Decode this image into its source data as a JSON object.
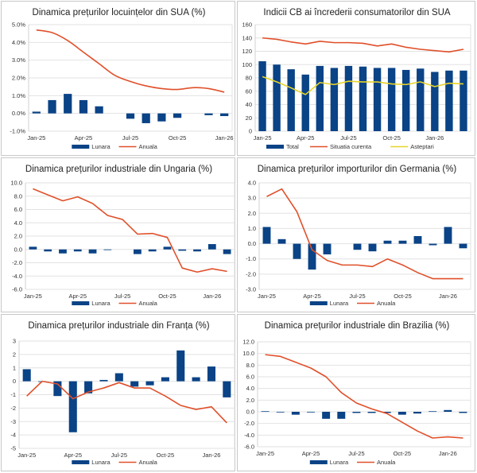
{
  "chart_data": [
    {
      "type": "bar+line",
      "title": "Dinamica prețurilor locuințelor din SUA (%)",
      "categories": [
        "Jan-25",
        "Feb-25",
        "Mar-25",
        "Apr-25",
        "May-25",
        "Jun-25",
        "Jul-25",
        "Aug-25",
        "Sep-25",
        "Oct-25",
        "Nov-25",
        "Dec-25",
        "Jan-26"
      ],
      "tick_labels": [
        "Jan-25",
        "Apr-25",
        "Jul-25",
        "Oct-25",
        "Jan-26"
      ],
      "tick_every": 3,
      "ylim": [
        -1.0,
        5.0
      ],
      "ystep": 1.0,
      "yformat": "pct1",
      "series": [
        {
          "name": "Lunara",
          "type": "bar",
          "color": "#0a4386",
          "values": [
            0.1,
            0.75,
            1.1,
            0.75,
            0.4,
            null,
            -0.3,
            -0.55,
            -0.45,
            -0.25,
            null,
            -0.1,
            -0.15
          ]
        },
        {
          "name": "Anuala",
          "type": "line",
          "color": "#e0502a",
          "values": [
            4.7,
            4.55,
            4.1,
            3.45,
            2.8,
            2.15,
            1.8,
            1.55,
            1.4,
            1.35,
            1.45,
            1.4,
            1.2
          ]
        }
      ],
      "legend": "bottom"
    },
    {
      "type": "bar+line",
      "title": "Indicii CB ai încrederii consumatorilor din SUA",
      "categories": [
        "Jan-25",
        "Feb-25",
        "Mar-25",
        "Apr-25",
        "May-25",
        "Jun-25",
        "Jul-25",
        "Aug-25",
        "Sep-25",
        "Oct-25",
        "Nov-25",
        "Dec-25",
        "Jan-26",
        "Feb-26",
        "Mar-26"
      ],
      "tick_labels": [
        "Jan-25",
        "Apr-25",
        "Jul-25",
        "Oct-25",
        "Jan-26"
      ],
      "tick_every": 3,
      "ylim": [
        0,
        160
      ],
      "ystep": 20,
      "yformat": "int",
      "series": [
        {
          "name": "Total",
          "type": "bar",
          "color": "#0a4386",
          "values": [
            105,
            100,
            93,
            85,
            98,
            95,
            98,
            97,
            95,
            95,
            92,
            94,
            89,
            91,
            91
          ]
        },
        {
          "name": "Situatia curenta",
          "type": "line",
          "color": "#e0502a",
          "values": [
            140,
            138,
            134,
            131,
            135,
            133,
            133,
            132,
            128,
            131,
            126,
            123,
            121,
            119,
            123
          ]
        },
        {
          "name": "Asteptari",
          "type": "line",
          "color": "#e8d42a",
          "values": [
            82,
            74,
            65,
            55,
            73,
            70,
            75,
            74,
            74,
            71,
            70,
            74,
            67,
            72,
            71
          ]
        }
      ],
      "legend": "bottom"
    },
    {
      "type": "bar+line",
      "title": "Dinamica prețurilor industriale din Ungaria (%)",
      "categories": [
        "Jan-25",
        "Feb-25",
        "Mar-25",
        "Apr-25",
        "May-25",
        "Jun-25",
        "Jul-25",
        "Aug-25",
        "Sep-25",
        "Oct-25",
        "Nov-25",
        "Dec-25",
        "Jan-26",
        "Feb-26"
      ],
      "tick_labels": [
        "Jan-25",
        "Apr-25",
        "Jul-25",
        "Oct-25",
        "Jan-26"
      ],
      "tick_every": 3,
      "ylim": [
        -6.0,
        10.0
      ],
      "ystep": 2.0,
      "yformat": "dec1",
      "series": [
        {
          "name": "Lunara",
          "type": "bar",
          "color": "#0a4386",
          "values": [
            0.4,
            -0.3,
            -0.6,
            -0.3,
            -0.6,
            -0.1,
            null,
            -0.7,
            -0.3,
            0.4,
            -0.2,
            -0.3,
            0.8,
            -0.7
          ]
        },
        {
          "name": "Anuala",
          "type": "line",
          "color": "#e0502a",
          "values": [
            9.1,
            8.2,
            7.3,
            7.9,
            6.9,
            5.1,
            4.5,
            2.3,
            2.4,
            1.8,
            -2.8,
            -3.4,
            -2.9,
            -3.3
          ]
        }
      ],
      "legend": "bottom"
    },
    {
      "type": "bar+line",
      "title": "Dinamica prețurilor importurilor din Germania (%)",
      "categories": [
        "Jan-25",
        "Feb-25",
        "Mar-25",
        "Apr-25",
        "May-25",
        "Jun-25",
        "Jul-25",
        "Aug-25",
        "Sep-25",
        "Oct-25",
        "Nov-25",
        "Dec-25",
        "Jan-26",
        "Feb-26"
      ],
      "tick_labels": [
        "Jan-25",
        "Apr-25",
        "Jul-25",
        "Oct-25",
        "Jan-26"
      ],
      "tick_every": 3,
      "ylim": [
        -3.0,
        4.0
      ],
      "ystep": 1.0,
      "yformat": "dec1",
      "series": [
        {
          "name": "Lunara",
          "type": "bar",
          "color": "#0a4386",
          "values": [
            1.1,
            0.3,
            -1.0,
            -1.7,
            -0.7,
            null,
            -0.4,
            -0.5,
            0.2,
            0.2,
            0.5,
            -0.1,
            1.1,
            -0.3
          ]
        },
        {
          "name": "Anuala",
          "type": "line",
          "color": "#e0502a",
          "values": [
            3.1,
            3.6,
            2.1,
            -0.4,
            -1.1,
            -1.4,
            -1.4,
            -1.5,
            -1.0,
            -1.4,
            -1.9,
            -2.3,
            -2.3,
            -2.3
          ]
        }
      ],
      "legend": "bottom"
    },
    {
      "type": "bar+line",
      "title": "Dinamica prețurilor industriale din Franța (%)",
      "categories": [
        "Jan-25",
        "Feb-25",
        "Mar-25",
        "Apr-25",
        "May-25",
        "Jun-25",
        "Jul-25",
        "Aug-25",
        "Sep-25",
        "Oct-25",
        "Nov-25",
        "Dec-25",
        "Jan-26",
        "Feb-26"
      ],
      "tick_labels": [
        "Jan-25",
        "Apr-25",
        "Jul-25",
        "Oct-25",
        "Jan-26"
      ],
      "tick_every": 3,
      "ylim": [
        -5,
        3
      ],
      "ystep": 1,
      "yformat": "int",
      "series": [
        {
          "name": "Lunara",
          "type": "bar",
          "color": "#0a4386",
          "values": [
            0.9,
            0.0,
            -1.1,
            -3.8,
            -0.9,
            0.1,
            0.6,
            -0.4,
            -0.3,
            0.3,
            2.3,
            0.3,
            1.1,
            -1.2
          ]
        },
        {
          "name": "Anuala",
          "type": "line",
          "color": "#e0502a",
          "values": [
            -1.1,
            0.0,
            -0.2,
            -1.3,
            -0.8,
            -0.5,
            -0.1,
            -0.5,
            -0.5,
            -1.1,
            -1.8,
            -2.1,
            -1.9,
            -3.1
          ]
        }
      ],
      "legend": "bottom"
    },
    {
      "type": "bar+line",
      "title": "Dinamica prețurilor industriale din Brazilia (%)",
      "categories": [
        "Jan-25",
        "Feb-25",
        "Mar-25",
        "Apr-25",
        "May-25",
        "Jun-25",
        "Jul-25",
        "Aug-25",
        "Sep-25",
        "Oct-25",
        "Nov-25",
        "Dec-25",
        "Jan-26",
        "Feb-26"
      ],
      "tick_labels": [
        "Jan-25",
        "Apr-25",
        "Jul-25",
        "Oct-25",
        "Jan-26"
      ],
      "tick_every": 3,
      "ylim": [
        -6.0,
        12.0
      ],
      "ystep": 2.0,
      "yformat": "dec1",
      "series": [
        {
          "name": "Lunara",
          "type": "bar",
          "color": "#0a4386",
          "values": [
            0.1,
            -0.1,
            -0.5,
            -0.1,
            -1.2,
            -1.2,
            -0.2,
            -0.2,
            -0.2,
            -0.5,
            -0.3,
            0.1,
            0.3,
            -0.2
          ]
        },
        {
          "name": "Anuala",
          "type": "line",
          "color": "#e0502a",
          "values": [
            9.8,
            9.5,
            8.5,
            7.5,
            6.0,
            3.3,
            1.5,
            0.5,
            -0.3,
            -1.8,
            -3.3,
            -4.5,
            -4.3,
            -4.5
          ]
        }
      ],
      "legend": "bottom"
    }
  ]
}
